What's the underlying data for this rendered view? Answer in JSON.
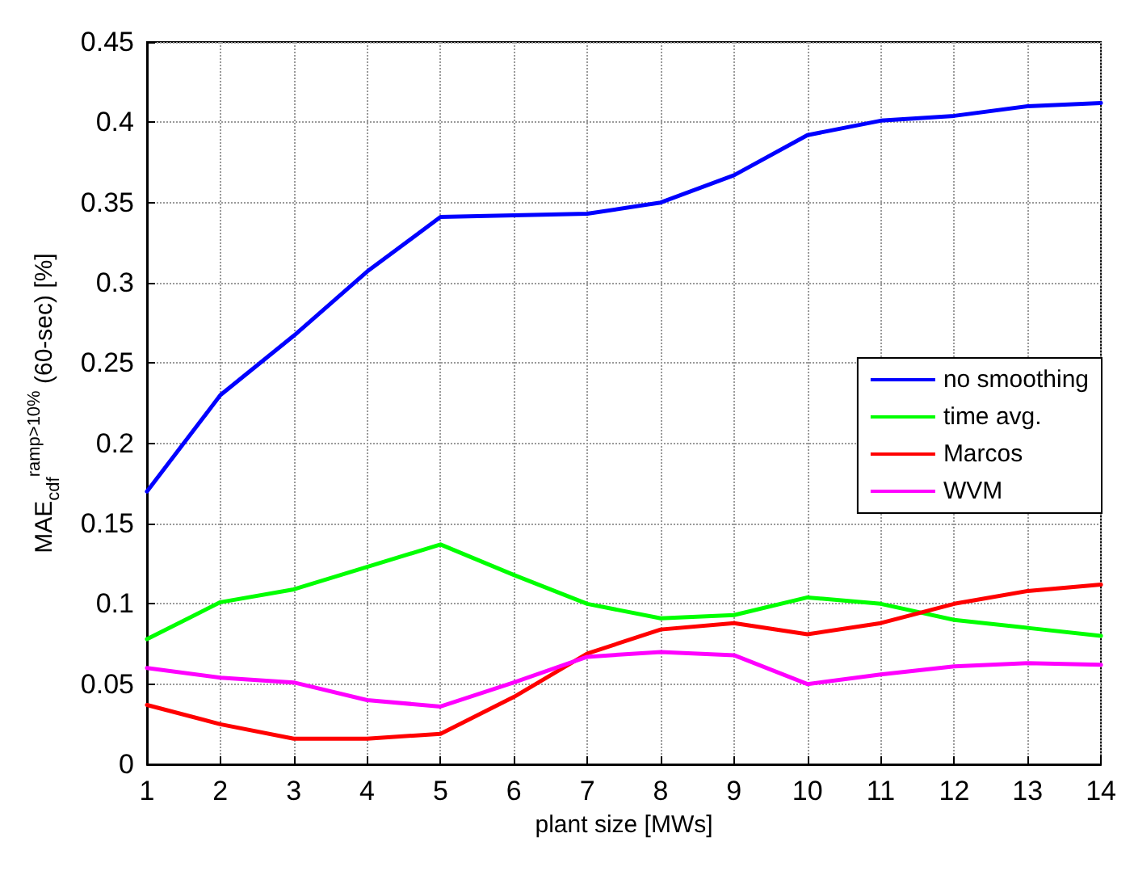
{
  "chart_data": {
    "type": "line",
    "xlabel": "plant size [MWs]",
    "ylabel": "MAE$_{cdf}$$^{ramp>10%}$ (60-sec) [%]",
    "x": [
      1,
      2,
      3,
      4,
      5,
      6,
      7,
      8,
      9,
      10,
      11,
      12,
      13,
      14
    ],
    "series": [
      {
        "name": "no smoothing",
        "color": "#0000ff",
        "values": [
          0.17,
          0.23,
          0.267,
          0.307,
          0.341,
          0.342,
          0.343,
          0.35,
          0.367,
          0.392,
          0.401,
          0.404,
          0.41,
          0.412
        ]
      },
      {
        "name": "time avg.",
        "color": "#00ff00",
        "values": [
          0.078,
          0.101,
          0.109,
          0.123,
          0.137,
          0.118,
          0.1,
          0.091,
          0.093,
          0.104,
          0.1,
          0.09,
          0.085,
          0.08
        ]
      },
      {
        "name": "Marcos",
        "color": "#ff0000",
        "values": [
          0.037,
          0.025,
          0.016,
          0.016,
          0.019,
          0.042,
          0.069,
          0.084,
          0.088,
          0.081,
          0.088,
          0.1,
          0.108,
          0.112
        ]
      },
      {
        "name": "WVM",
        "color": "#ff00ff",
        "values": [
          0.06,
          0.054,
          0.051,
          0.04,
          0.036,
          0.051,
          0.067,
          0.07,
          0.068,
          0.05,
          0.056,
          0.061,
          0.063,
          0.062
        ]
      }
    ],
    "xlim": [
      1,
      14
    ],
    "xticks": [
      1,
      2,
      3,
      4,
      5,
      6,
      7,
      8,
      9,
      10,
      11,
      12,
      13,
      14
    ],
    "ylim": [
      0,
      0.45
    ],
    "yticks": [
      0,
      0.05,
      0.1,
      0.15,
      0.2,
      0.25,
      0.3,
      0.35,
      0.4,
      0.45
    ],
    "grid": true,
    "legend": "right",
    "marker": "none",
    "line_style": "solid"
  }
}
